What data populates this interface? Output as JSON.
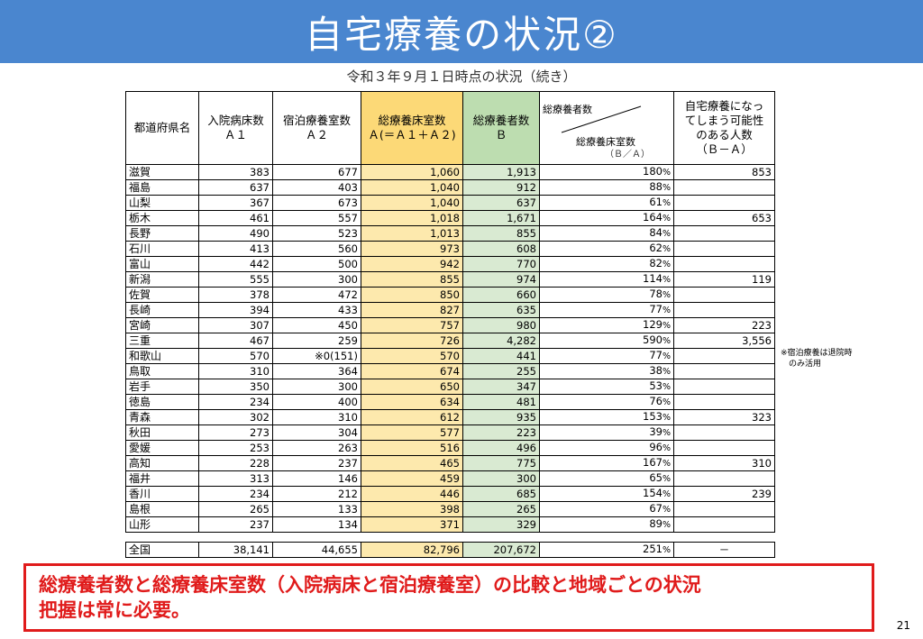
{
  "title": "自宅療養の状況②",
  "subtitle": "令和３年９月１日時点の状況（続き）",
  "table": {
    "headers": {
      "pref": "都道府県名",
      "a1_line1": "入院病床数",
      "a1_line2": "Ａ１",
      "a2_line1": "宿泊療養室数",
      "a2_line2": "Ａ２",
      "a_line1": "総療養床室数",
      "a_line2": "Ａ(＝Ａ１＋Ａ２)",
      "b_line1": "総療養者数",
      "b_line2": "Ｂ",
      "ratio_top": "総療養者数",
      "ratio_mid": "総療養床室数",
      "ratio_bot": "（Ｂ／Ａ）",
      "home_line1": "自宅療養になっ",
      "home_line2": "てしまう可能性",
      "home_line3": "のある人数",
      "home_line4": "（Ｂ－Ａ）"
    },
    "rows": [
      {
        "pref": "滋賀",
        "a1": "383",
        "a2": "677",
        "a": "1,060",
        "b": "1,913",
        "ratio": "180",
        "home": "853"
      },
      {
        "pref": "福島",
        "a1": "637",
        "a2": "403",
        "a": "1,040",
        "b": "912",
        "ratio": "88",
        "home": ""
      },
      {
        "pref": "山梨",
        "a1": "367",
        "a2": "673",
        "a": "1,040",
        "b": "637",
        "ratio": "61",
        "home": ""
      },
      {
        "pref": "栃木",
        "a1": "461",
        "a2": "557",
        "a": "1,018",
        "b": "1,671",
        "ratio": "164",
        "home": "653"
      },
      {
        "pref": "長野",
        "a1": "490",
        "a2": "523",
        "a": "1,013",
        "b": "855",
        "ratio": "84",
        "home": ""
      },
      {
        "pref": "石川",
        "a1": "413",
        "a2": "560",
        "a": "973",
        "b": "608",
        "ratio": "62",
        "home": ""
      },
      {
        "pref": "富山",
        "a1": "442",
        "a2": "500",
        "a": "942",
        "b": "770",
        "ratio": "82",
        "home": ""
      },
      {
        "pref": "新潟",
        "a1": "555",
        "a2": "300",
        "a": "855",
        "b": "974",
        "ratio": "114",
        "home": "119"
      },
      {
        "pref": "佐賀",
        "a1": "378",
        "a2": "472",
        "a": "850",
        "b": "660",
        "ratio": "78",
        "home": ""
      },
      {
        "pref": "長崎",
        "a1": "394",
        "a2": "433",
        "a": "827",
        "b": "635",
        "ratio": "77",
        "home": ""
      },
      {
        "pref": "宮崎",
        "a1": "307",
        "a2": "450",
        "a": "757",
        "b": "980",
        "ratio": "129",
        "home": "223"
      },
      {
        "pref": "三重",
        "a1": "467",
        "a2": "259",
        "a": "726",
        "b": "4,282",
        "ratio": "590",
        "home": "3,556"
      },
      {
        "pref": "和歌山",
        "a1": "570",
        "a2": "※0(151)",
        "a": "570",
        "b": "441",
        "ratio": "77",
        "home": ""
      },
      {
        "pref": "鳥取",
        "a1": "310",
        "a2": "364",
        "a": "674",
        "b": "255",
        "ratio": "38",
        "home": ""
      },
      {
        "pref": "岩手",
        "a1": "350",
        "a2": "300",
        "a": "650",
        "b": "347",
        "ratio": "53",
        "home": ""
      },
      {
        "pref": "徳島",
        "a1": "234",
        "a2": "400",
        "a": "634",
        "b": "481",
        "ratio": "76",
        "home": ""
      },
      {
        "pref": "青森",
        "a1": "302",
        "a2": "310",
        "a": "612",
        "b": "935",
        "ratio": "153",
        "home": "323"
      },
      {
        "pref": "秋田",
        "a1": "273",
        "a2": "304",
        "a": "577",
        "b": "223",
        "ratio": "39",
        "home": ""
      },
      {
        "pref": "愛媛",
        "a1": "253",
        "a2": "263",
        "a": "516",
        "b": "496",
        "ratio": "96",
        "home": ""
      },
      {
        "pref": "高知",
        "a1": "228",
        "a2": "237",
        "a": "465",
        "b": "775",
        "ratio": "167",
        "home": "310"
      },
      {
        "pref": "福井",
        "a1": "313",
        "a2": "146",
        "a": "459",
        "b": "300",
        "ratio": "65",
        "home": ""
      },
      {
        "pref": "香川",
        "a1": "234",
        "a2": "212",
        "a": "446",
        "b": "685",
        "ratio": "154",
        "home": "239"
      },
      {
        "pref": "島根",
        "a1": "265",
        "a2": "133",
        "a": "398",
        "b": "265",
        "ratio": "67",
        "home": ""
      },
      {
        "pref": "山形",
        "a1": "237",
        "a2": "134",
        "a": "371",
        "b": "329",
        "ratio": "89",
        "home": ""
      }
    ],
    "total": {
      "pref": "全国",
      "a1": "38,141",
      "a2": "44,655",
      "a": "82,796",
      "b": "207,672",
      "ratio": "251",
      "home": "－"
    },
    "percent_sign": "%"
  },
  "note_line1": "※宿泊療養は退院時",
  "note_line2": "　のみ活用",
  "callout_line1": "総療養者数と総療養床室数（入院病床と宿泊療養室）の比較と地域ごとの状況",
  "callout_line2": "把握は常に必要。",
  "page_number": "21",
  "colors": {
    "title_bar": "#4a86cf",
    "col_a_fill": "#fde9ad",
    "col_b_fill": "#d9ead2",
    "callout_red": "#e01b1b"
  }
}
